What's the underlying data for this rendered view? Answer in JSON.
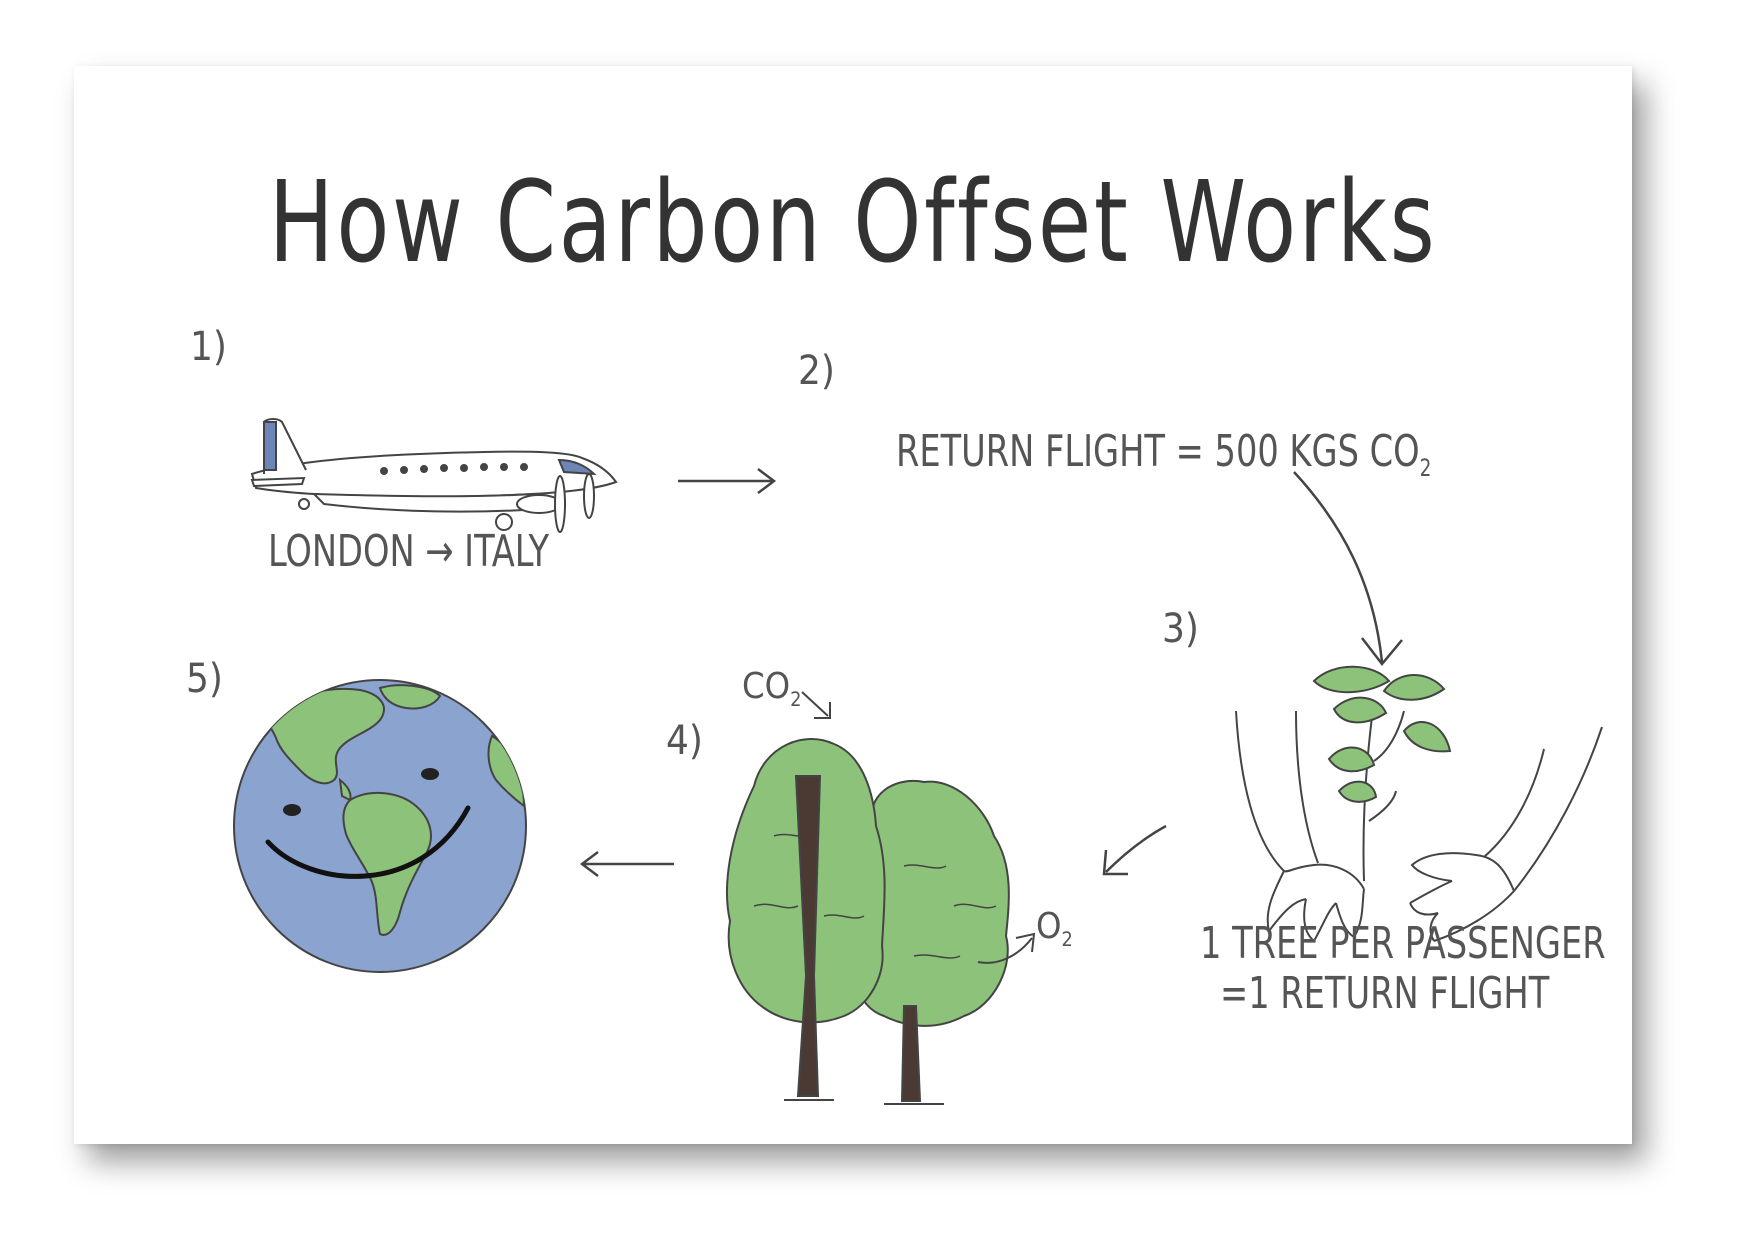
{
  "title": "How Carbon Offset Works",
  "steps": {
    "s1": {
      "num": "1)",
      "caption": "LONDON → ITALY"
    },
    "s2": {
      "num": "2)",
      "text_main": "RETURN FLIGHT = 500 KGS CO",
      "text_sub": "2"
    },
    "s3": {
      "num": "3)",
      "line1": "1 TREE PER PASSENGER",
      "line2": "=1 RETURN FLIGHT"
    },
    "s4": {
      "num": "4)",
      "co2_main": "CO",
      "co2_sub": "2",
      "o2_main": "O",
      "o2_sub": "2"
    },
    "s5": {
      "num": "5)"
    }
  },
  "colors": {
    "green": "#8cc27a",
    "ocean": "#8aa3cf",
    "trunk": "#4a3a33",
    "line": "#444444",
    "plane_accent": "#6e85b8"
  },
  "icons": [
    "airplane-icon",
    "arrow-right-icon",
    "curved-arrow-down-icon",
    "hands-seedling-icon",
    "arrow-left-icon",
    "trees-icon",
    "smiling-earth-icon"
  ]
}
